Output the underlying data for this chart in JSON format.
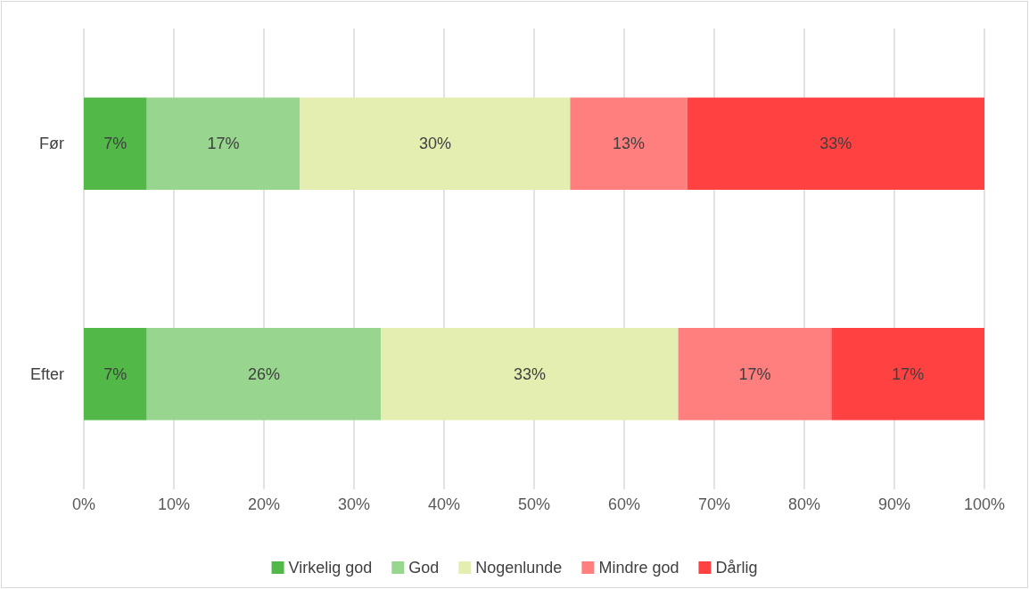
{
  "chart_data": {
    "type": "bar",
    "orientation": "horizontal",
    "stacked": true,
    "categories": [
      "Før",
      "Efter"
    ],
    "series": [
      {
        "name": "Virkelig god",
        "color": "#52b848",
        "values": [
          7,
          7
        ],
        "value_labels": [
          "7%",
          "7%"
        ]
      },
      {
        "name": "God",
        "color": "#98d58e",
        "values": [
          17,
          26
        ],
        "value_labels": [
          "17%",
          "26%"
        ]
      },
      {
        "name": "Nogenlunde",
        "color": "#e3eeb0",
        "values": [
          30,
          33
        ],
        "value_labels": [
          "30%",
          "33%"
        ]
      },
      {
        "name": "Mindre god",
        "color": "#ff7f7f",
        "values": [
          13,
          17
        ],
        "value_labels": [
          "13%",
          "17%"
        ]
      },
      {
        "name": "Dårlig",
        "color": "#ff4141",
        "values": [
          33,
          17
        ],
        "value_labels": [
          "33%",
          "17%"
        ]
      }
    ],
    "xlim": [
      0,
      100
    ],
    "xticks": [
      {
        "value": 0,
        "label": "0%"
      },
      {
        "value": 10,
        "label": "10%"
      },
      {
        "value": 20,
        "label": "20%"
      },
      {
        "value": 30,
        "label": "30%"
      },
      {
        "value": 40,
        "label": "40%"
      },
      {
        "value": 50,
        "label": "50%"
      },
      {
        "value": 60,
        "label": "60%"
      },
      {
        "value": 70,
        "label": "70%"
      },
      {
        "value": 80,
        "label": "80%"
      },
      {
        "value": 90,
        "label": "90%"
      },
      {
        "value": 100,
        "label": "100%"
      }
    ],
    "grid": "x",
    "legend": "bottom"
  }
}
